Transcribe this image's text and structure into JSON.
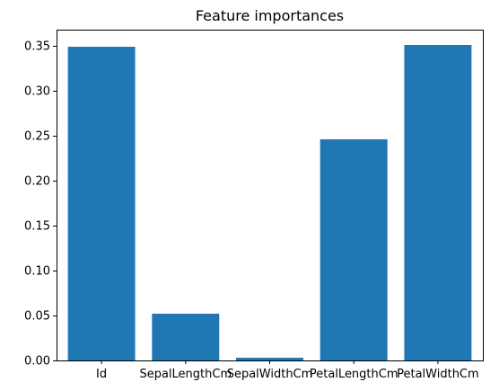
{
  "chart_data": {
    "type": "bar",
    "title": "Feature importances",
    "categories": [
      "Id",
      "SepalLengthCm",
      "SepalWidthCm",
      "PetalLengthCm",
      "PetalWidthCm"
    ],
    "values": [
      0.349,
      0.052,
      0.003,
      0.246,
      0.351
    ],
    "ylim": [
      0,
      0.368
    ],
    "yticks": [
      0.0,
      0.05,
      0.1,
      0.15,
      0.2,
      0.25,
      0.3,
      0.35
    ],
    "ytick_labels": [
      "0.00",
      "0.05",
      "0.10",
      "0.15",
      "0.20",
      "0.25",
      "0.30",
      "0.35"
    ],
    "xlabel": "",
    "ylabel": "",
    "bar_color": "#1f77b4",
    "grid": false,
    "legend": "none"
  }
}
